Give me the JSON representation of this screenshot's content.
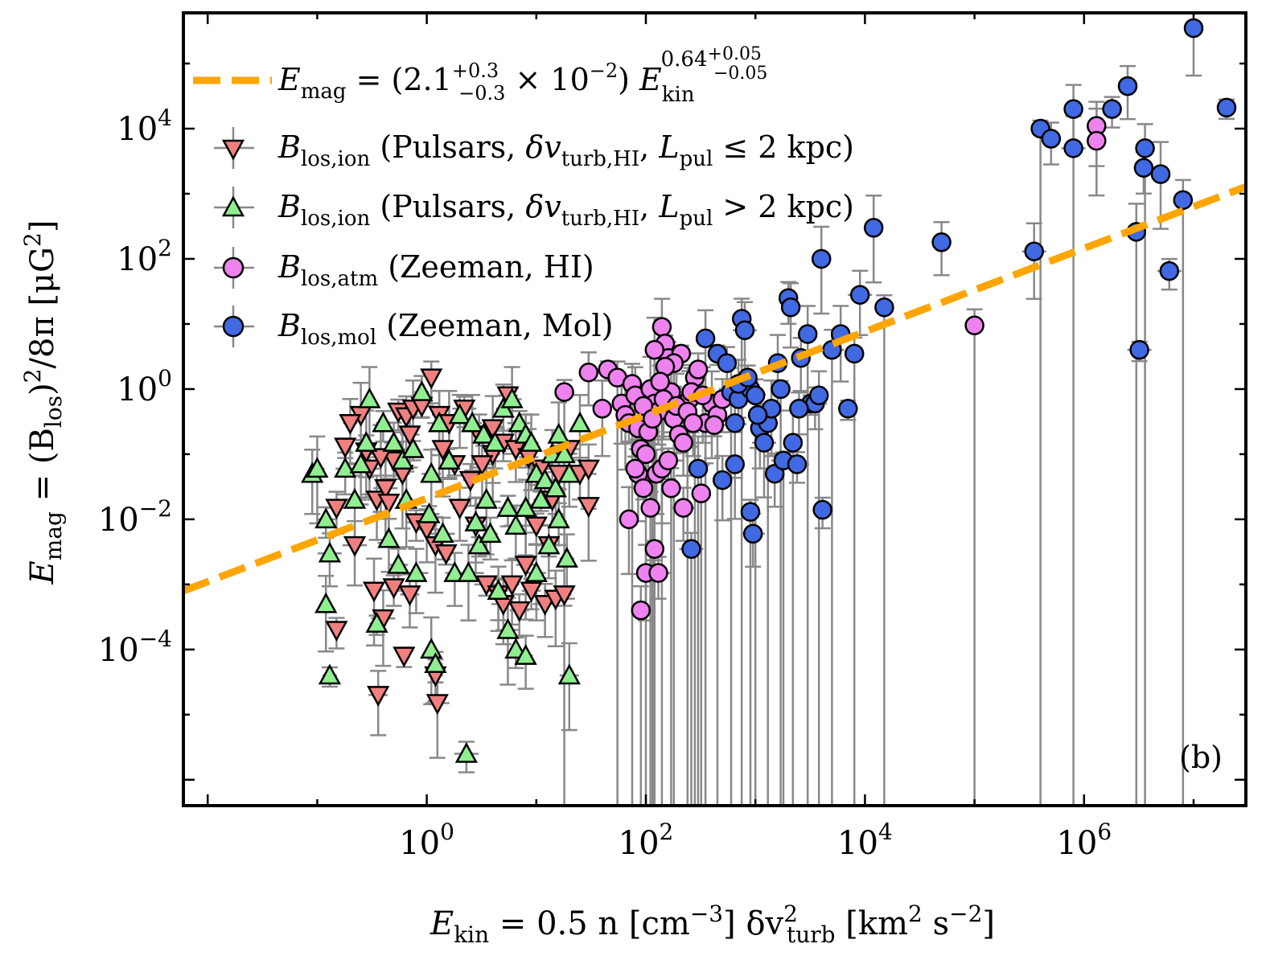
{
  "chart_data": {
    "type": "scatter",
    "panel_label": "(b)",
    "xlabel": {
      "pre": "E",
      "sub1": "kin",
      "mid": " = 0.5 n [cm",
      "sup1": "−3",
      "mid2": "] δv",
      "sup2": "2",
      "sub2": "turb",
      "post": " [km",
      "sup3": "2",
      "mid3": " s",
      "sup4": "−2",
      "end": "]"
    },
    "ylabel": {
      "pre": "E",
      "sub1": "mag",
      "mid": " = (B",
      "sub2": "los",
      "mid2": ")",
      "sup1": "2",
      "mid3": "/8π [μG",
      "sup2": "2",
      "end": "]"
    },
    "xscale": "log",
    "yscale": "log",
    "xlim": [
      0.006,
      30000000
    ],
    "ylim": [
      4e-07,
      600000
    ],
    "x_ticks": [
      {
        "value": 1,
        "label": "10",
        "exp": "0"
      },
      {
        "value": 100,
        "label": "10",
        "exp": "2"
      },
      {
        "value": 10000,
        "label": "10",
        "exp": "4"
      },
      {
        "value": 1000000,
        "label": "10",
        "exp": "6"
      }
    ],
    "y_ticks": [
      {
        "value": 0.0001,
        "label": "10",
        "exp": "−4"
      },
      {
        "value": 0.01,
        "label": "10",
        "exp": "−2"
      },
      {
        "value": 1,
        "label": "10",
        "exp": "0"
      },
      {
        "value": 100,
        "label": "10",
        "exp": "2"
      },
      {
        "value": 10000,
        "label": "10",
        "exp": "4"
      }
    ],
    "legend_position": "top-left",
    "fit": {
      "label": "E_mag = (2.1 (+0.3 −0.3) × 10^−2) E_kin^(0.64 +0.05 −0.05)",
      "coefficient": 0.021,
      "exponent": 0.64,
      "color": "#FFA500",
      "x_range": [
        0.006,
        30000000
      ]
    },
    "series": [
      {
        "name": "B_los,ion (Pulsars, δv_turb,HI, L_pul ≤ 2 kpc)",
        "marker": "triangle-down",
        "color": "#F08080",
        "points": [
          [
            0.18,
            0.13
          ],
          [
            0.28,
            0.11
          ],
          [
            0.35,
            0.02
          ],
          [
            0.42,
            0.03
          ],
          [
            0.55,
            0.45
          ],
          [
            0.65,
            0.38
          ],
          [
            0.75,
            0.5
          ],
          [
            0.9,
            0.55
          ],
          [
            1.1,
            1.5
          ],
          [
            1.3,
            0.4
          ],
          [
            1.6,
            0.3
          ],
          [
            2.2,
            0.5
          ],
          [
            3.0,
            0.2
          ],
          [
            4.0,
            0.1
          ],
          [
            5.5,
            0.8
          ],
          [
            0.3,
            0.06
          ],
          [
            0.45,
            0.018
          ],
          [
            0.6,
            0.05
          ],
          [
            0.8,
            0.009
          ],
          [
            1.0,
            0.007
          ],
          [
            1.2,
            0.004
          ],
          [
            1.5,
            0.003
          ],
          [
            0.15,
            0.015
          ],
          [
            0.22,
            0.004
          ],
          [
            0.33,
            0.0008
          ],
          [
            0.5,
            0.0009
          ],
          [
            0.7,
            0.0007
          ],
          [
            0.4,
            0.0003
          ],
          [
            0.62,
            8e-05
          ],
          [
            1.2,
            4e-05
          ],
          [
            0.36,
            2e-05
          ],
          [
            1.25,
            1.5e-05
          ],
          [
            0.15,
            0.0002
          ],
          [
            2.0,
            0.015
          ],
          [
            2.8,
            0.008
          ],
          [
            3.5,
            0.001
          ],
          [
            4.5,
            0.0007
          ],
          [
            6.0,
            0.001
          ],
          [
            8.0,
            0.002
          ],
          [
            10,
            0.008
          ],
          [
            13,
            0.004
          ],
          [
            16,
            0.05
          ],
          [
            20,
            0.12
          ],
          [
            25,
            0.05
          ],
          [
            30,
            0.06
          ],
          [
            30,
            0.016
          ],
          [
            9,
            0.0008
          ],
          [
            12,
            0.0005
          ],
          [
            15,
            0.0006
          ],
          [
            18,
            0.0007
          ],
          [
            7,
            0.0004
          ],
          [
            5,
            0.0005
          ],
          [
            0.25,
            0.4
          ],
          [
            0.5,
            0.08
          ],
          [
            0.7,
            0.2
          ],
          [
            1.4,
            0.12
          ],
          [
            1.8,
            0.07
          ],
          [
            2.5,
            0.04
          ],
          [
            3.2,
            0.07
          ],
          [
            4.0,
            0.25
          ],
          [
            5.0,
            0.15
          ],
          [
            6.5,
            0.12
          ],
          [
            8.5,
            0.09
          ],
          [
            11,
            0.06
          ],
          [
            14,
            0.02
          ],
          [
            0.2,
            0.3
          ],
          [
            0.38,
            0.09
          ]
        ]
      },
      {
        "name": "B_los,ion (Pulsars, δv_turb,HI, L_pul > 2 kpc)",
        "marker": "triangle-up",
        "color": "#90EE90",
        "points": [
          [
            0.09,
            0.05
          ],
          [
            0.1,
            0.06
          ],
          [
            0.12,
            0.01
          ],
          [
            0.13,
            0.003
          ],
          [
            0.12,
            0.0005
          ],
          [
            0.13,
            4e-05
          ],
          [
            0.18,
            0.06
          ],
          [
            0.25,
            0.07
          ],
          [
            0.3,
            0.7
          ],
          [
            0.4,
            0.3
          ],
          [
            0.5,
            0.15
          ],
          [
            0.6,
            0.08
          ],
          [
            0.75,
            0.12
          ],
          [
            0.9,
            0.9
          ],
          [
            1.1,
            0.05
          ],
          [
            1.3,
            0.3
          ],
          [
            1.6,
            0.08
          ],
          [
            2.0,
            0.4
          ],
          [
            2.6,
            0.3
          ],
          [
            3.3,
            0.2
          ],
          [
            4.2,
            0.15
          ],
          [
            5.0,
            0.5
          ],
          [
            6.0,
            0.7
          ],
          [
            7.0,
            0.3
          ],
          [
            8.0,
            0.2
          ],
          [
            9.0,
            0.15
          ],
          [
            10,
            0.05
          ],
          [
            12,
            0.04
          ],
          [
            14,
            0.1
          ],
          [
            16,
            0.2
          ],
          [
            18,
            0.1
          ],
          [
            20,
            0.05
          ],
          [
            25,
            0.3
          ],
          [
            0.35,
            0.00025
          ],
          [
            0.55,
            0.002
          ],
          [
            0.8,
            0.0015
          ],
          [
            1.1,
            0.0001
          ],
          [
            1.2,
            6e-05
          ],
          [
            1.8,
            0.0015
          ],
          [
            2.4,
            0.0015
          ],
          [
            3.0,
            0.004
          ],
          [
            3.8,
            0.006
          ],
          [
            4.5,
            0.0008
          ],
          [
            5.5,
            0.0002
          ],
          [
            6.5,
            0.0001
          ],
          [
            8.0,
            8e-05
          ],
          [
            10,
            0.0015
          ],
          [
            13,
            0.004
          ],
          [
            16,
            0.01
          ],
          [
            19,
            0.0025
          ],
          [
            20,
            4e-05
          ],
          [
            2.3,
            2.5e-06
          ],
          [
            0.45,
            0.005
          ],
          [
            0.65,
            0.02
          ],
          [
            1.05,
            0.012
          ],
          [
            1.4,
            0.006
          ],
          [
            2.8,
            0.009
          ],
          [
            3.5,
            0.02
          ],
          [
            5.5,
            0.015
          ],
          [
            6.5,
            0.008
          ],
          [
            8,
            0.015
          ],
          [
            11,
            0.02
          ],
          [
            15,
            0.03
          ],
          [
            0.22,
            0.02
          ],
          [
            0.28,
            0.15
          ]
        ]
      },
      {
        "name": "B_los,atm (Zeeman, HI)",
        "marker": "circle",
        "color": "#EE82EE",
        "points": [
          [
            18,
            0.9
          ],
          [
            30,
            1.8
          ],
          [
            40,
            0.5
          ],
          [
            45,
            2.0
          ],
          [
            55,
            1.5
          ],
          [
            60,
            0.6
          ],
          [
            65,
            0.4
          ],
          [
            70,
            0.3
          ],
          [
            75,
            1.2
          ],
          [
            80,
            0.8
          ],
          [
            85,
            0.25
          ],
          [
            90,
            0.12
          ],
          [
            100,
            0.1
          ],
          [
            110,
            1.0
          ],
          [
            120,
            0.6
          ],
          [
            130,
            0.45
          ],
          [
            140,
            9.0
          ],
          [
            150,
            5.0
          ],
          [
            160,
            3.0
          ],
          [
            170,
            0.9
          ],
          [
            180,
            0.35
          ],
          [
            200,
            0.2
          ],
          [
            220,
            0.15
          ],
          [
            250,
            0.7
          ],
          [
            280,
            1.5
          ],
          [
            300,
            2.0
          ],
          [
            350,
            0.3
          ],
          [
            400,
            0.6
          ],
          [
            450,
            0.4
          ],
          [
            500,
            0.7
          ],
          [
            85,
            0.05
          ],
          [
            95,
            0.03
          ],
          [
            110,
            0.015
          ],
          [
            125,
            0.05
          ],
          [
            140,
            0.06
          ],
          [
            160,
            0.08
          ],
          [
            170,
            0.03
          ],
          [
            100,
            0.0015
          ],
          [
            120,
            0.0035
          ],
          [
            130,
            0.0015
          ],
          [
            90,
            0.0004
          ],
          [
            70,
            0.01
          ],
          [
            80,
            0.06
          ],
          [
            220,
            0.015
          ],
          [
            320,
            0.025
          ],
          [
            210,
            3.5
          ],
          [
            180,
            2.5
          ],
          [
            260,
            0.9
          ],
          [
            120,
            4.0
          ],
          [
            150,
            2.2
          ],
          [
            95,
            0.55
          ],
          [
            105,
            0.22
          ],
          [
            115,
            0.35
          ],
          [
            135,
            1.3
          ],
          [
            145,
            0.7
          ],
          [
            190,
            0.55
          ],
          [
            240,
            0.45
          ],
          [
            270,
            0.3
          ],
          [
            330,
            0.8
          ],
          [
            420,
            0.28
          ],
          [
            100000,
            9.5
          ],
          [
            1300000,
            11000
          ],
          [
            1300000,
            6500
          ]
        ]
      },
      {
        "name": "B_los,mol (Zeeman, Mol)",
        "marker": "circle",
        "color": "#4169E1",
        "points": [
          [
            350,
            6.0
          ],
          [
            450,
            3.5
          ],
          [
            550,
            2.5
          ],
          [
            600,
            0.9
          ],
          [
            650,
            0.3
          ],
          [
            700,
            0.7
          ],
          [
            750,
            12.0
          ],
          [
            800,
            8.0
          ],
          [
            900,
            1.0
          ],
          [
            1000,
            0.8
          ],
          [
            1100,
            0.25
          ],
          [
            1200,
            0.15
          ],
          [
            1300,
            0.3
          ],
          [
            1500,
            0.05
          ],
          [
            1600,
            2.5
          ],
          [
            1800,
            0.08
          ],
          [
            2000,
            25.0
          ],
          [
            2100,
            18.0
          ],
          [
            2200,
            0.15
          ],
          [
            2400,
            0.07
          ],
          [
            2600,
            3.0
          ],
          [
            3000,
            7.0
          ],
          [
            3200,
            0.6
          ],
          [
            3500,
            0.6
          ],
          [
            3800,
            0.8
          ],
          [
            4000,
            100
          ],
          [
            4100,
            0.014
          ],
          [
            5000,
            4.0
          ],
          [
            6000,
            7.0
          ],
          [
            7000,
            0.5
          ],
          [
            8000,
            3.5
          ],
          [
            9000,
            28
          ],
          [
            12000,
            300
          ],
          [
            15000,
            18
          ],
          [
            50000,
            180
          ],
          [
            350000,
            130
          ],
          [
            400000,
            10000
          ],
          [
            500000,
            7000
          ],
          [
            800000,
            20000
          ],
          [
            800000,
            5000
          ],
          [
            1800000,
            20000
          ],
          [
            2500000,
            45000
          ],
          [
            3000000,
            260
          ],
          [
            3200000,
            4.0
          ],
          [
            3500000,
            2500
          ],
          [
            3600000,
            5000
          ],
          [
            5000000,
            2000
          ],
          [
            6000000,
            65
          ],
          [
            8000000,
            800
          ],
          [
            10000000,
            350000
          ],
          [
            20000000,
            21000
          ],
          [
            260,
            0.0035
          ],
          [
            500,
            0.04
          ],
          [
            650,
            0.07
          ],
          [
            900,
            0.013
          ],
          [
            950,
            0.006
          ],
          [
            1400,
            0.5
          ],
          [
            1700,
            1.0
          ],
          [
            2500,
            0.5
          ],
          [
            700,
            1.2
          ],
          [
            300,
            0.06
          ],
          [
            850,
            1.5
          ],
          [
            1050,
            0.4
          ]
        ]
      }
    ]
  }
}
